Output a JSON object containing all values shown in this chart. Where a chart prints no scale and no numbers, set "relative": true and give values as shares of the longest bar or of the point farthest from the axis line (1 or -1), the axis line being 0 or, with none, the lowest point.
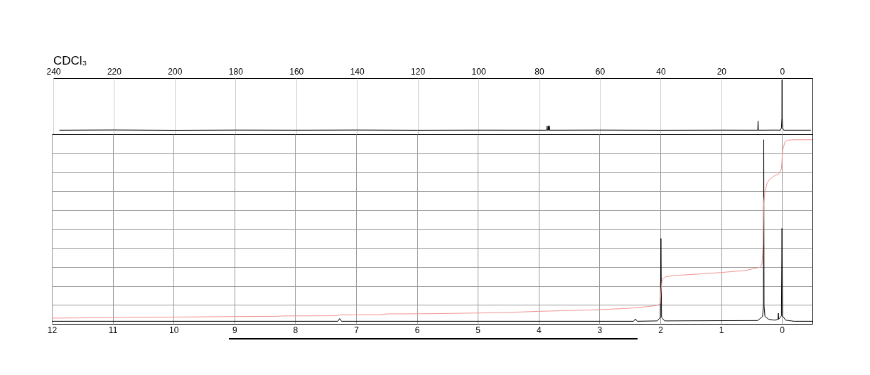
{
  "chart_data": [
    {
      "type": "line",
      "title": "CDCl₃",
      "relative": true,
      "xlim": [
        240,
        -10
      ],
      "xticks": [
        240,
        220,
        200,
        180,
        160,
        140,
        120,
        100,
        80,
        60,
        40,
        20,
        0
      ],
      "grid": "x",
      "tick_labels": "x",
      "series": [
        {
          "color": "#000000",
          "x": [
            238,
            220,
            200,
            180,
            160,
            140,
            120,
            100,
            78,
            77.5,
            77.4,
            77.3,
            77.1,
            77.0,
            76.9,
            76.7,
            76.6,
            76.5,
            60,
            40,
            20,
            8.0,
            7.9,
            7.8,
            2,
            0.5,
            0.2,
            0.05,
            0,
            -0.05,
            -0.2,
            -0.5,
            -2,
            -9.5
          ],
          "values": [
            0.074,
            0.078,
            0.072,
            0.076,
            0.074,
            0.077,
            0.073,
            0.075,
            0.074,
            0.074,
            0.152,
            0.074,
            0.074,
            0.152,
            0.074,
            0.074,
            0.152,
            0.074,
            0.076,
            0.073,
            0.075,
            0.074,
            0.247,
            0.074,
            0.076,
            0.074,
            0.12,
            0.31,
            1,
            0.31,
            0.12,
            0.074,
            0.074,
            0.074
          ]
        }
      ]
    },
    {
      "type": "line",
      "relative": true,
      "xlim": [
        12,
        -0.5
      ],
      "xticks": [
        12,
        11,
        10,
        9,
        8,
        7,
        6,
        5,
        4,
        3,
        2,
        1,
        0
      ],
      "grid": true,
      "tick_labels": "x",
      "series": [
        {
          "color": "#000000",
          "x": [
            12,
            7.3,
            7.27,
            7.24,
            2.44,
            2.41,
            2.38,
            2.05,
            2.0,
            1.99,
            1.98,
            1.93,
            0.4,
            0.32,
            0.305,
            0.3,
            0.295,
            0.28,
            0.22,
            0.12,
            0.065,
            0.06,
            0.055,
            0.01,
            0,
            -0.01,
            -0.06,
            -0.2,
            -0.5
          ],
          "values": [
            0.014,
            0.014,
            0.029,
            0.014,
            0.014,
            0.027,
            0.014,
            0.016,
            0.036,
            0.464,
            0.036,
            0.016,
            0.018,
            0.04,
            0.097,
            1,
            0.097,
            0.04,
            0.025,
            0.02,
            0.025,
            0.058,
            0.025,
            0.043,
            0.519,
            0.043,
            0.02,
            0.014,
            0.014
          ]
        },
        {
          "color": "#f29393",
          "x": [
            12,
            11,
            10.6,
            10,
            9.2,
            9,
            8.3,
            8.2,
            7.35,
            7.25,
            6.6,
            6.5,
            5.8,
            5,
            4.5,
            4,
            3,
            2.5,
            2.2,
            2.05,
            2.0,
            1.99,
            1.97,
            1.92,
            1.8,
            1.5,
            1.0,
            0.6,
            0.4,
            0.36,
            0.33,
            0.31,
            0.3,
            0.28,
            0.245,
            0.21,
            0.13,
            0.05,
            0.01,
            -0.01,
            -0.05,
            -0.1,
            -0.2,
            -0.5
          ],
          "values": [
            0.031,
            0.034,
            0.036,
            0.037,
            0.039,
            0.04,
            0.041,
            0.043,
            0.044,
            0.049,
            0.05,
            0.054,
            0.055,
            0.059,
            0.062,
            0.068,
            0.077,
            0.085,
            0.094,
            0.1,
            0.11,
            0.18,
            0.24,
            0.255,
            0.262,
            0.268,
            0.279,
            0.29,
            0.305,
            0.307,
            0.326,
            0.429,
            0.661,
            0.719,
            0.764,
            0.783,
            0.803,
            0.816,
            0.841,
            0.944,
            0.99,
            0.998,
            1,
            1
          ]
        }
      ]
    }
  ]
}
